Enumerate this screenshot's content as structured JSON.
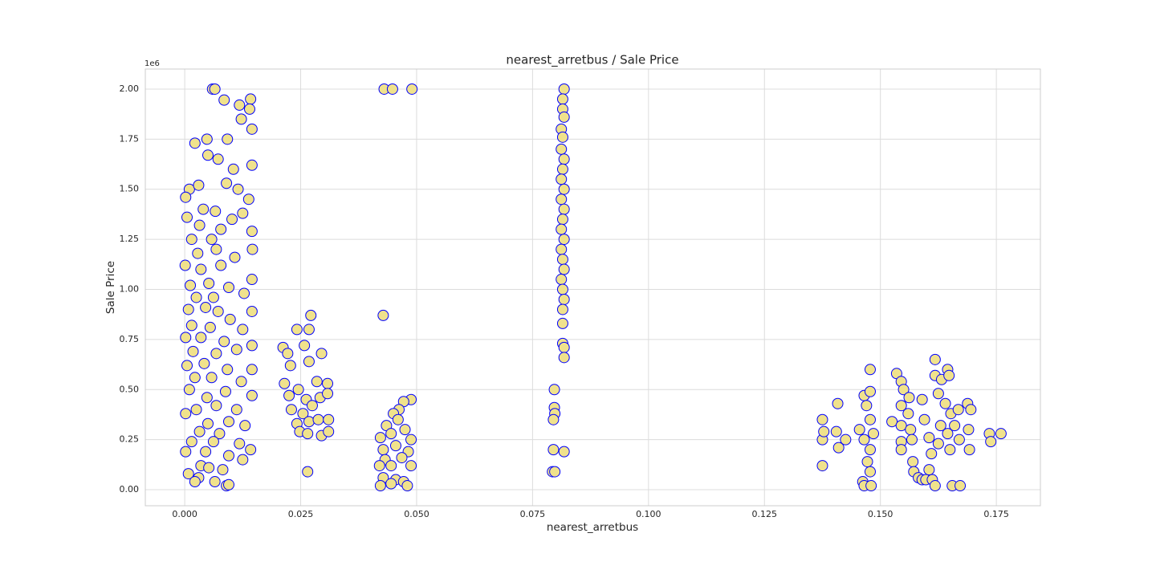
{
  "chart_data": {
    "type": "scatter",
    "title": "nearest_arretbus / Sale Price",
    "x_label": "nearest_arretbus",
    "y_label": "Sale Price",
    "y_offset_label": "1e6",
    "color": "#f0e28c",
    "edgecolor": "#0000ff",
    "grid": true,
    "xlim": [
      -0.0085,
      0.1845
    ],
    "ylim": [
      -80000,
      2100000
    ],
    "xticks": [
      {
        "value": 0,
        "label": "0.000"
      },
      0.025,
      {
        "value": 0.05,
        "label": "0.050"
      },
      0.075,
      {
        "value": 0.1,
        "label": "0.100"
      },
      0.125,
      {
        "value": 0.15,
        "label": "0.150"
      },
      0.175
    ],
    "yticks": [
      {
        "value": 0,
        "label": "0.00"
      },
      {
        "value": 250000,
        "label": "0.25"
      },
      {
        "value": 500000,
        "label": "0.50"
      },
      {
        "value": 750000,
        "label": "0.75"
      },
      {
        "value": 1000000,
        "label": "1.00"
      },
      {
        "value": 1250000,
        "label": "1.25"
      },
      {
        "value": 1500000,
        "label": "1.50"
      },
      {
        "value": 1750000,
        "label": "1.75"
      },
      {
        "value": 2000000,
        "label": "2.00"
      }
    ],
    "x": [
      0.006,
      0.0065,
      0.0085,
      0.0118,
      0.0142,
      0.014,
      0.0122,
      0.0145,
      0.0145,
      0.0048,
      0.0092,
      0.0022,
      0.005,
      0.0072,
      0.0105,
      0.001,
      0.003,
      0.009,
      0.0138,
      0.0115,
      0.0002,
      0.004,
      0.0066,
      0.0125,
      0.0005,
      0.0032,
      0.0078,
      0.0145,
      0.0015,
      0.0058,
      0.0102,
      0.0146,
      0.0028,
      0.0068,
      0.0108,
      0.0001,
      0.0035,
      0.0078,
      0.0145,
      0.0012,
      0.0052,
      0.0095,
      0.0025,
      0.0062,
      0.0128,
      0.0008,
      0.0045,
      0.0072,
      0.0145,
      0.0015,
      0.0055,
      0.0098,
      0.0125,
      0.0002,
      0.0035,
      0.0085,
      0.0145,
      0.0018,
      0.0068,
      0.0112,
      0.0005,
      0.0042,
      0.0092,
      0.0145,
      0.0022,
      0.0058,
      0.0122,
      0.001,
      0.0048,
      0.0088,
      0.0145,
      0.0025,
      0.0068,
      0.0112,
      0.0002,
      0.005,
      0.0095,
      0.013,
      0.0032,
      0.0075,
      0.0015,
      0.0062,
      0.0118,
      0.0142,
      0.0002,
      0.0045,
      0.0095,
      0.0125,
      0.0035,
      0.0052,
      0.0082,
      0.0008,
      0.003,
      0.0065,
      0.0022,
      0.009,
      0.0095,
      0.0212,
      0.0222,
      0.0242,
      0.0268,
      0.0272,
      0.0215,
      0.0228,
      0.0258,
      0.0268,
      0.0295,
      0.0225,
      0.0245,
      0.0262,
      0.0285,
      0.0308,
      0.023,
      0.0255,
      0.0275,
      0.0292,
      0.0308,
      0.0242,
      0.0268,
      0.0288,
      0.031,
      0.0248,
      0.0265,
      0.0295,
      0.031,
      0.0265,
      0.043,
      0.0448,
      0.049,
      0.0428,
      0.0488,
      0.0472,
      0.0462,
      0.045,
      0.0435,
      0.046,
      0.0422,
      0.0445,
      0.0475,
      0.0488,
      0.0428,
      0.0455,
      0.0482,
      0.0432,
      0.0468,
      0.042,
      0.0445,
      0.0488,
      0.0428,
      0.0455,
      0.0472,
      0.0422,
      0.0445,
      0.048,
      0.0818,
      0.0815,
      0.0815,
      0.0818,
      0.0812,
      0.0815,
      0.0812,
      0.0818,
      0.0815,
      0.0812,
      0.0818,
      0.0812,
      0.0818,
      0.0815,
      0.0812,
      0.0818,
      0.0812,
      0.0815,
      0.0818,
      0.0812,
      0.0815,
      0.0818,
      0.0815,
      0.0815,
      0.0815,
      0.0818,
      0.0818,
      0.0797,
      0.0797,
      0.0798,
      0.0795,
      0.0795,
      0.0818,
      0.0793,
      0.0798,
      0.1375,
      0.1375,
      0.1378,
      0.1375,
      0.1408,
      0.1405,
      0.141,
      0.1425,
      0.1455,
      0.1465,
      0.1478,
      0.1478,
      0.147,
      0.1465,
      0.1478,
      0.1485,
      0.1478,
      0.1472,
      0.1478,
      0.1462,
      0.1465,
      0.148,
      0.1525,
      0.1535,
      0.1545,
      0.155,
      0.1545,
      0.1545,
      0.1545,
      0.1545,
      0.1562,
      0.156,
      0.1565,
      0.1568,
      0.157,
      0.1572,
      0.1582,
      0.159,
      0.1598,
      0.159,
      0.1595,
      0.1605,
      0.161,
      0.1605,
      0.1612,
      0.1618,
      0.1618,
      0.1618,
      0.1632,
      0.1645,
      0.1648,
      0.1625,
      0.164,
      0.1652,
      0.163,
      0.1645,
      0.166,
      0.1625,
      0.165,
      0.1668,
      0.167,
      0.1688,
      0.1695,
      0.169,
      0.1692,
      0.1655,
      0.1672,
      0.1735,
      0.1738,
      0.176
    ],
    "values": [
      2000000,
      2000000,
      1945000,
      1920000,
      1950000,
      1900000,
      1850000,
      1800000,
      1620000,
      1750000,
      1750000,
      1730000,
      1670000,
      1650000,
      1600000,
      1500000,
      1520000,
      1530000,
      1450000,
      1500000,
      1460000,
      1400000,
      1390000,
      1380000,
      1360000,
      1320000,
      1300000,
      1290000,
      1250000,
      1250000,
      1350000,
      1200000,
      1180000,
      1200000,
      1160000,
      1120000,
      1100000,
      1120000,
      1050000,
      1020000,
      1030000,
      1010000,
      960000,
      960000,
      980000,
      900000,
      910000,
      890000,
      890000,
      820000,
      810000,
      850000,
      800000,
      760000,
      760000,
      740000,
      720000,
      690000,
      680000,
      700000,
      620000,
      630000,
      600000,
      600000,
      560000,
      560000,
      540000,
      500000,
      460000,
      490000,
      470000,
      400000,
      420000,
      400000,
      380000,
      330000,
      340000,
      320000,
      290000,
      280000,
      240000,
      240000,
      230000,
      200000,
      190000,
      190000,
      170000,
      150000,
      120000,
      110000,
      100000,
      80000,
      60000,
      40000,
      40000,
      20000,
      25000,
      710000,
      680000,
      800000,
      800000,
      870000,
      530000,
      620000,
      720000,
      640000,
      680000,
      470000,
      500000,
      450000,
      540000,
      530000,
      400000,
      380000,
      420000,
      460000,
      480000,
      330000,
      340000,
      350000,
      350000,
      290000,
      280000,
      270000,
      290000,
      90000,
      2000000,
      2000000,
      2000000,
      870000,
      450000,
      440000,
      400000,
      380000,
      320000,
      350000,
      260000,
      280000,
      300000,
      250000,
      200000,
      220000,
      190000,
      150000,
      160000,
      120000,
      120000,
      120000,
      60000,
      50000,
      40000,
      20000,
      30000,
      20000,
      2000000,
      1950000,
      1900000,
      1860000,
      1800000,
      1760000,
      1700000,
      1650000,
      1600000,
      1550000,
      1500000,
      1450000,
      1400000,
      1350000,
      1300000,
      1250000,
      1200000,
      1150000,
      1100000,
      1050000,
      1000000,
      950000,
      900000,
      830000,
      730000,
      710000,
      660000,
      500000,
      410000,
      380000,
      350000,
      200000,
      190000,
      90000,
      90000,
      350000,
      250000,
      290000,
      120000,
      430000,
      290000,
      210000,
      250000,
      300000,
      470000,
      600000,
      490000,
      420000,
      250000,
      350000,
      280000,
      200000,
      140000,
      90000,
      40000,
      20000,
      20000,
      340000,
      580000,
      540000,
      500000,
      420000,
      320000,
      240000,
      200000,
      460000,
      380000,
      300000,
      250000,
      140000,
      90000,
      60000,
      50000,
      50000,
      450000,
      350000,
      260000,
      180000,
      100000,
      50000,
      20000,
      650000,
      570000,
      550000,
      600000,
      570000,
      480000,
      430000,
      380000,
      320000,
      280000,
      320000,
      230000,
      200000,
      400000,
      250000,
      430000,
      400000,
      300000,
      200000,
      20000,
      20000,
      280000,
      240000,
      280000
    ]
  }
}
